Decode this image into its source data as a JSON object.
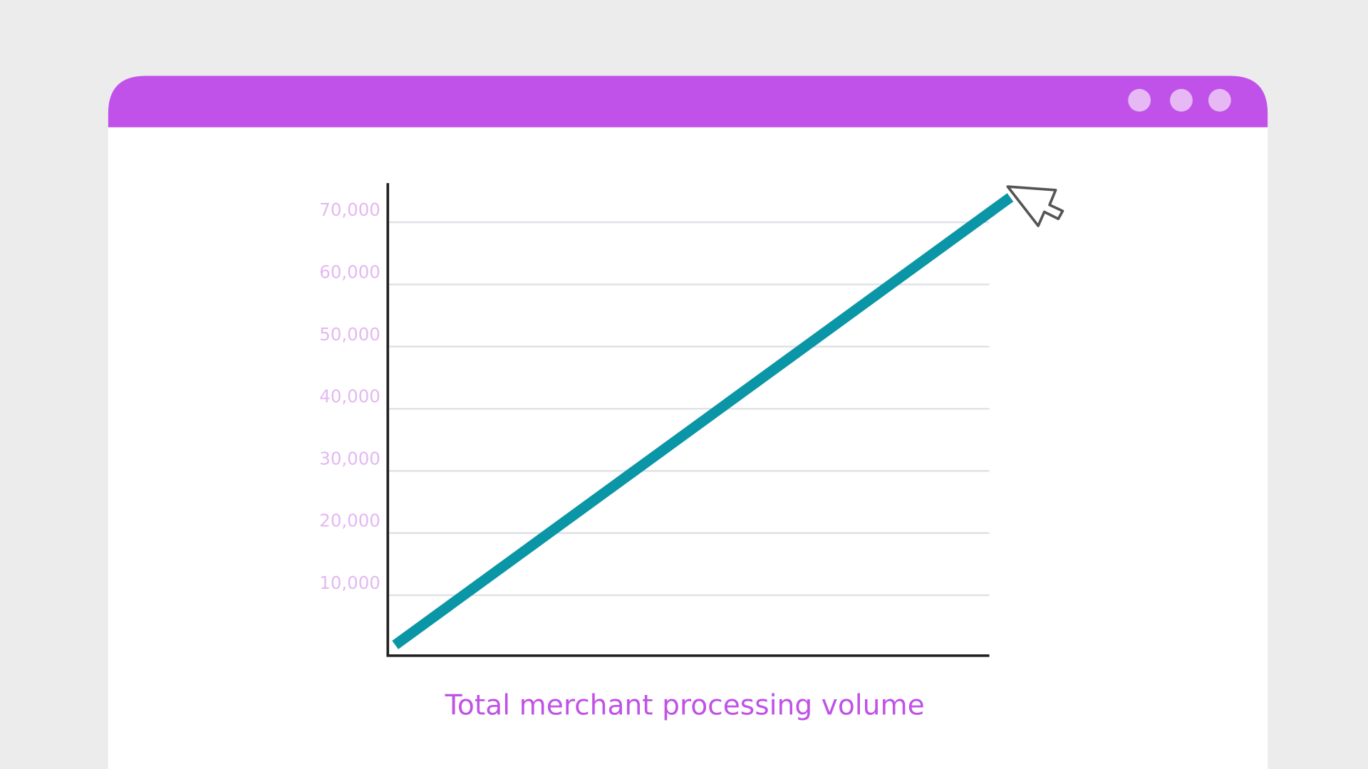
{
  "chart_data": {
    "type": "line",
    "title": "Total merchant processing volume",
    "categories": [
      null,
      null
    ],
    "values": [
      2000,
      74000
    ],
    "color": "#0a96a6",
    "ylim": [
      0,
      76000
    ],
    "yticks": [
      {
        "value": 10000,
        "label": "10,000"
      },
      {
        "value": 20000,
        "label": "20,000"
      },
      {
        "value": 30000,
        "label": "30,000"
      },
      {
        "value": 40000,
        "label": "40,000"
      },
      {
        "value": 50000,
        "label": "50,000"
      },
      {
        "value": 60000,
        "label": "60,000"
      },
      {
        "value": 70000,
        "label": "70,000"
      }
    ],
    "grid": true
  }
}
